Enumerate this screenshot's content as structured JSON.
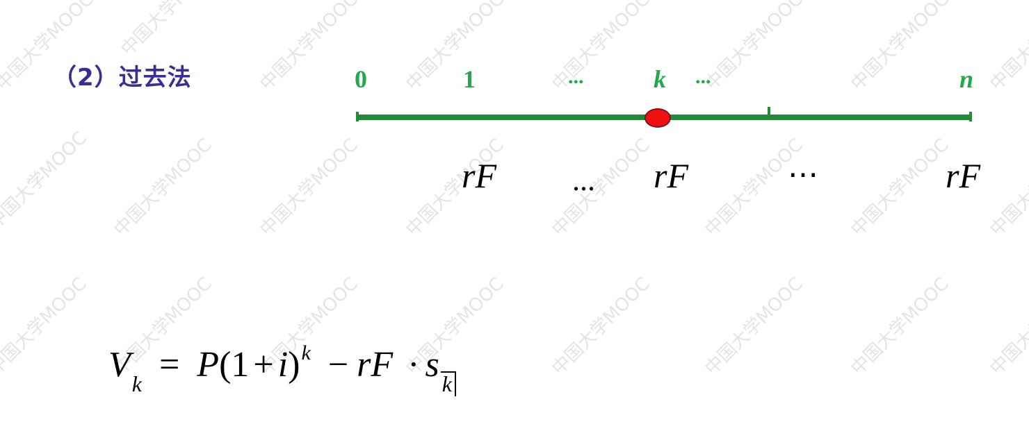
{
  "heading": "（2）过去法",
  "watermark": "中国大学MOOC",
  "timeline": {
    "labels": {
      "zero": "0",
      "one": "1",
      "dots_left": "...",
      "k": "k",
      "dots_right": "...",
      "n": "n"
    },
    "payments": {
      "rf_1": "rF",
      "dots_1": "...",
      "rf_k": "rF",
      "dots_2": "⋯",
      "rf_n": "rF"
    },
    "colors": {
      "line": "#218b3a",
      "label": "#22aa4a",
      "marker": "#f01010"
    }
  },
  "formula": {
    "V": "V",
    "V_sub": "k",
    "eq": "=",
    "P": "P",
    "open": "(1",
    "plus": "+",
    "i": "i",
    "close": ")",
    "exp": "k",
    "minus": "−",
    "rF": "rF",
    "dot": "·",
    "s": "s",
    "s_sub": "k"
  }
}
